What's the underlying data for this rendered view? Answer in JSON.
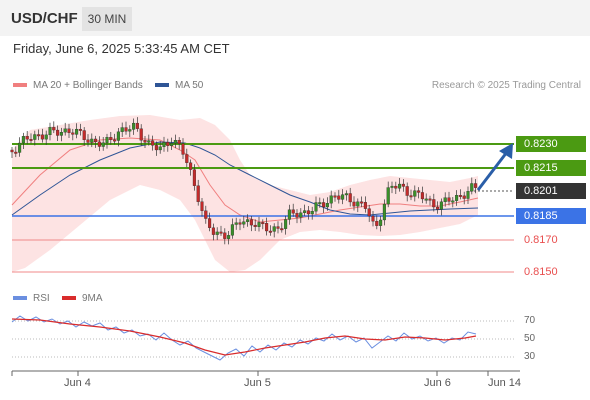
{
  "header": {
    "pair": "USD/CHF",
    "timeframe": "30 MIN"
  },
  "datetime": "Friday, June 6, 2025 5:33:45 AM CET",
  "legend": {
    "ma20": {
      "label": "MA 20 + Bollinger Bands",
      "color": "#f07f7f"
    },
    "ma50": {
      "label": "MA 50",
      "color": "#2f5596"
    }
  },
  "research": "Research © 2025 Trading Central",
  "levels": {
    "resistance_2": "0.8230",
    "resistance_1": "0.8215",
    "current": "0.8201",
    "support_1": "0.8185",
    "support_2": "0.8170",
    "support_3": "0.8150"
  },
  "rsi": {
    "legend": {
      "rsi": "RSI",
      "ma": "9MA"
    },
    "ticks": [
      "70",
      "50",
      "30"
    ]
  },
  "xaxis": [
    "Jun 4",
    "Jun 5",
    "Jun 6",
    "Jun 14"
  ],
  "colors": {
    "resistance": "#4b9a12",
    "support_blue": "#3b73e6",
    "support_red": "#e94f4f",
    "bollinger_fill": "#fde3e3",
    "candle_up": "#3a8f2a",
    "candle_down": "#c22b2b",
    "rsi_line": "#6b8fe0",
    "rsi_ma": "#d92c2c"
  }
}
